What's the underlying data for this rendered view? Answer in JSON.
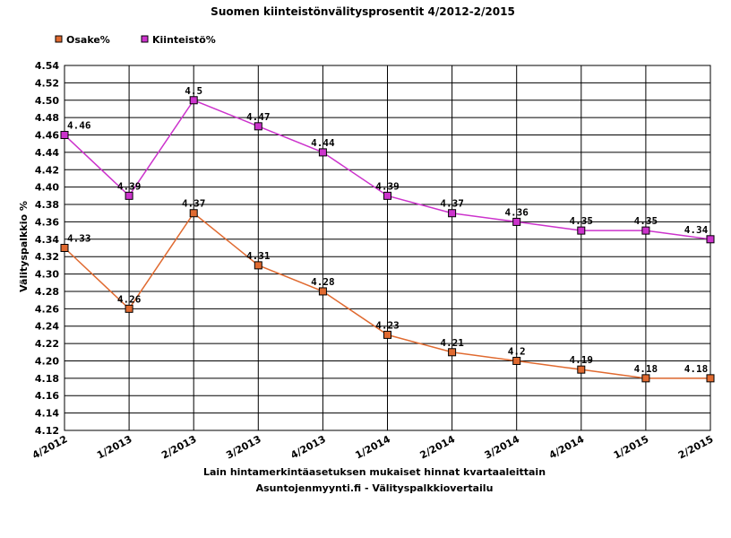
{
  "chart_data": {
    "type": "line",
    "title": "Suomen kiinteistönvälitysprosentit 4/2012-2/2015",
    "ylabel": "Välityspalkkio %",
    "xlabel": "Lain hintamerkintäasetuksen mukaiset hinnat kvartaaleittain",
    "source": "Asuntojenmyynti.fi - Välityspalkkiovertailu",
    "categories": [
      "4/2012",
      "1/2013",
      "2/2013",
      "3/2013",
      "4/2013",
      "1/2014",
      "2/2014",
      "3/2014",
      "4/2014",
      "1/2015",
      "2/2015"
    ],
    "ylim": [
      4.12,
      4.54
    ],
    "yticks": [
      "4.12",
      "4.14",
      "4.16",
      "4.18",
      "4.20",
      "4.22",
      "4.24",
      "4.26",
      "4.28",
      "4.30",
      "4.32",
      "4.34",
      "4.36",
      "4.38",
      "4.40",
      "4.42",
      "4.44",
      "4.46",
      "4.48",
      "4.50",
      "4.52",
      "4.54"
    ],
    "grid": true,
    "legend_position": "top-left",
    "series": [
      {
        "name": "Osake%",
        "color": "#e06a30",
        "values": [
          4.33,
          4.26,
          4.37,
          4.31,
          4.28,
          4.23,
          4.21,
          4.2,
          4.19,
          4.18,
          4.18
        ],
        "labels": [
          "4.33",
          "4.26",
          "4.37",
          "4.31",
          "4.28",
          "4.23",
          "4.21",
          "4.2",
          "4.19",
          "4.18",
          "4.18"
        ]
      },
      {
        "name": "Kiinteistö%",
        "color": "#cc33cc",
        "values": [
          4.46,
          4.39,
          4.5,
          4.47,
          4.44,
          4.39,
          4.37,
          4.36,
          4.35,
          4.35,
          4.34
        ],
        "labels": [
          "4.46",
          "4.39",
          "4.5",
          "4.47",
          "4.44",
          "4.39",
          "4.37",
          "4.36",
          "4.35",
          "4.35",
          "4.34"
        ]
      }
    ]
  }
}
